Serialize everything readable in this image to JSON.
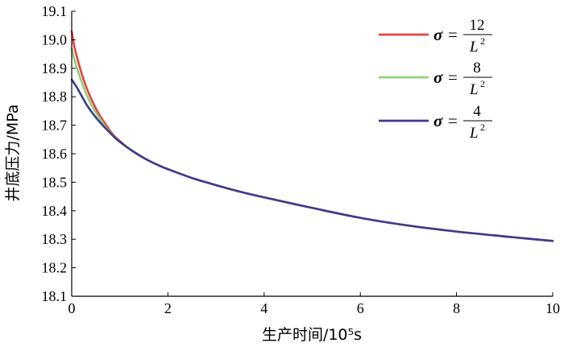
{
  "chart_data": {
    "type": "line",
    "xlabel": "生产时间/10⁵s",
    "ylabel": "井底压力/MPa",
    "xlim": [
      0,
      10
    ],
    "ylim": [
      18.1,
      19.1
    ],
    "x_ticks": [
      "0",
      "2",
      "4",
      "6",
      "8",
      "10"
    ],
    "y_ticks": [
      "18.1",
      "18.2",
      "18.3",
      "18.4",
      "18.5",
      "18.6",
      "18.7",
      "18.8",
      "18.9",
      "19.0",
      "19.1"
    ],
    "grid": false,
    "legend_position": "top-right",
    "series": [
      {
        "name": "σ = 12/L²",
        "legend": {
          "lhs": "σ",
          "eq": "=",
          "numerator": "12",
          "denominator": "L",
          "exponent": "2"
        },
        "color": "#e8423f",
        "x": [
          0.0,
          0.05,
          0.1,
          0.2,
          0.3,
          0.4,
          0.5,
          0.6,
          0.7,
          0.8,
          0.9,
          1.0,
          1.1,
          1.2,
          1.4,
          1.6,
          1.8,
          2.0,
          2.5,
          3.0,
          3.5,
          4.0,
          5.0,
          6.0,
          7.0,
          8.0,
          9.0,
          10.0
        ],
        "y": [
          19.03,
          18.98,
          18.945,
          18.885,
          18.835,
          18.795,
          18.76,
          18.73,
          18.705,
          18.68,
          18.66,
          18.645,
          18.63,
          18.617,
          18.595,
          18.576,
          18.56,
          18.546,
          18.515,
          18.49,
          18.467,
          18.447,
          18.41,
          18.375,
          18.348,
          18.327,
          18.31,
          18.294
        ]
      },
      {
        "name": "σ = 8/L²",
        "legend": {
          "lhs": "σ",
          "eq": "=",
          "numerator": "8",
          "denominator": "L",
          "exponent": "2"
        },
        "color": "#8fd17a",
        "x": [
          0.0,
          0.05,
          0.1,
          0.2,
          0.3,
          0.4,
          0.5,
          0.6,
          0.7,
          0.8,
          0.9,
          1.0,
          1.1,
          1.2,
          1.4,
          1.6,
          1.8,
          2.0,
          2.5,
          3.0,
          3.5,
          4.0,
          5.0,
          6.0,
          7.0,
          8.0,
          9.0,
          10.0
        ],
        "y": [
          18.97,
          18.935,
          18.905,
          18.855,
          18.81,
          18.775,
          18.745,
          18.72,
          18.695,
          18.675,
          18.657,
          18.642,
          18.629,
          18.617,
          18.595,
          18.576,
          18.56,
          18.546,
          18.515,
          18.49,
          18.467,
          18.447,
          18.41,
          18.375,
          18.348,
          18.327,
          18.31,
          18.294
        ]
      },
      {
        "name": "σ = 4/L²",
        "legend": {
          "lhs": "σ",
          "eq": "=",
          "numerator": "4",
          "denominator": "L",
          "exponent": "2"
        },
        "color": "#3a3d8f",
        "x": [
          0.0,
          0.1,
          0.2,
          0.3,
          0.4,
          0.5,
          0.6,
          0.7,
          0.8,
          0.9,
          1.0,
          1.1,
          1.2,
          1.4,
          1.6,
          1.8,
          2.0,
          2.5,
          3.0,
          3.5,
          4.0,
          5.0,
          6.0,
          7.0,
          8.0,
          9.0,
          10.0
        ],
        "y": [
          18.86,
          18.835,
          18.805,
          18.775,
          18.75,
          18.728,
          18.708,
          18.69,
          18.673,
          18.656,
          18.642,
          18.629,
          18.617,
          18.595,
          18.576,
          18.56,
          18.546,
          18.515,
          18.49,
          18.467,
          18.447,
          18.41,
          18.375,
          18.348,
          18.327,
          18.31,
          18.294
        ]
      }
    ]
  }
}
